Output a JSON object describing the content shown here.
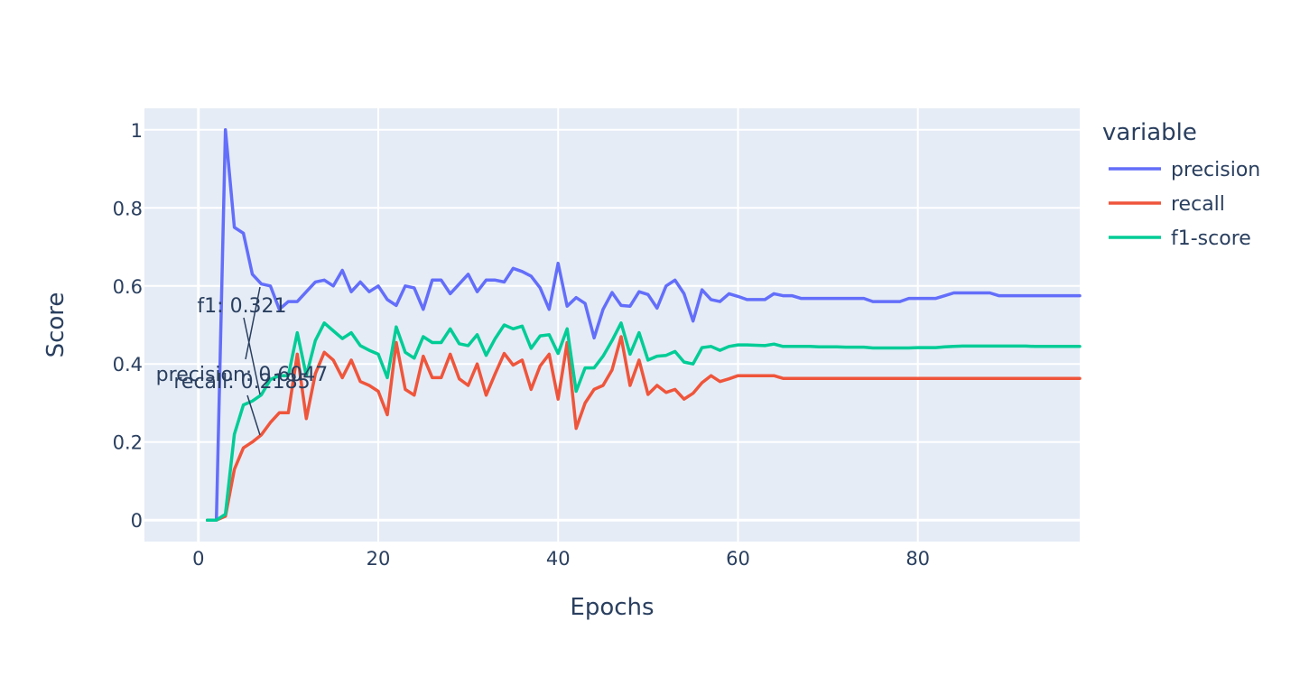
{
  "chart_data": {
    "type": "line",
    "xlabel": "Epochs",
    "ylabel": "Score",
    "xlim": [
      -6,
      98
    ],
    "ylim": [
      -0.055,
      1.055
    ],
    "xticks": [
      0,
      20,
      40,
      60,
      80
    ],
    "xtick_labels": [
      "0",
      "20",
      "40",
      "60",
      "80"
    ],
    "yticks": [
      0,
      0.2,
      0.4,
      0.6,
      0.8,
      1
    ],
    "ytick_labels": [
      "0",
      "0.2",
      "0.4",
      "0.6",
      "0.8",
      "1"
    ],
    "grid": true,
    "background": "#e5ecf6",
    "legend": {
      "title": "variable",
      "placement": "right"
    },
    "series": [
      {
        "name": "precision",
        "color": "#636efa",
        "x": [
          1,
          2,
          3,
          4,
          5,
          6,
          7,
          8,
          9,
          10,
          11,
          12,
          13,
          14,
          15,
          16,
          17,
          18,
          19,
          20,
          21,
          22,
          23,
          24,
          25,
          26,
          27,
          28,
          29,
          30,
          31,
          32,
          33,
          34,
          35,
          36,
          37,
          38,
          39,
          40,
          41,
          42,
          43,
          44,
          45,
          46,
          47,
          48,
          49,
          50,
          51,
          52,
          53,
          54,
          55,
          56,
          57,
          58,
          59,
          60,
          61,
          62,
          63,
          64,
          65,
          66,
          67,
          68,
          69,
          70,
          71,
          72,
          73,
          74,
          75,
          76,
          77,
          78,
          79,
          80,
          81,
          82,
          83,
          84,
          85,
          86,
          87,
          88,
          89,
          90,
          91,
          92,
          93,
          94,
          95,
          96,
          97,
          98
        ],
        "y": [
          0,
          0,
          1,
          0.75,
          0.735,
          0.63,
          0.605,
          0.6,
          0.54,
          0.56,
          0.56,
          0.585,
          0.61,
          0.615,
          0.6,
          0.64,
          0.585,
          0.61,
          0.585,
          0.6,
          0.565,
          0.55,
          0.6,
          0.595,
          0.54,
          0.615,
          0.615,
          0.58,
          0.605,
          0.63,
          0.585,
          0.615,
          0.615,
          0.61,
          0.645,
          0.637,
          0.625,
          0.595,
          0.54,
          0.658,
          0.548,
          0.57,
          0.555,
          0.467,
          0.54,
          0.583,
          0.55,
          0.548,
          0.585,
          0.578,
          0.543,
          0.6,
          0.615,
          0.58,
          0.51,
          0.59,
          0.565,
          0.56,
          0.58,
          0.573,
          0.565,
          0.565,
          0.565,
          0.58,
          0.575,
          0.575,
          0.568,
          0.568,
          0.568,
          0.568,
          0.568,
          0.568,
          0.568,
          0.568,
          0.56,
          0.56,
          0.56,
          0.56,
          0.568,
          0.568,
          0.568,
          0.568,
          0.575,
          0.582,
          0.582,
          0.582,
          0.582,
          0.582,
          0.575,
          0.575,
          0.575,
          0.575,
          0.575,
          0.575,
          0.575,
          0.575,
          0.575,
          0.575
        ]
      },
      {
        "name": "recall",
        "color": "#ef553b",
        "x": [
          1,
          2,
          3,
          4,
          5,
          6,
          7,
          8,
          9,
          10,
          11,
          12,
          13,
          14,
          15,
          16,
          17,
          18,
          19,
          20,
          21,
          22,
          23,
          24,
          25,
          26,
          27,
          28,
          29,
          30,
          31,
          32,
          33,
          34,
          35,
          36,
          37,
          38,
          39,
          40,
          41,
          42,
          43,
          44,
          45,
          46,
          47,
          48,
          49,
          50,
          51,
          52,
          53,
          54,
          55,
          56,
          57,
          58,
          59,
          60,
          61,
          62,
          63,
          64,
          65,
          66,
          67,
          68,
          69,
          70,
          71,
          72,
          73,
          74,
          75,
          76,
          77,
          78,
          79,
          80,
          81,
          82,
          83,
          84,
          85,
          86,
          87,
          88,
          89,
          90,
          91,
          92,
          93,
          94,
          95,
          96,
          97,
          98
        ],
        "y": [
          0,
          0,
          0.01,
          0.13,
          0.185,
          0.2,
          0.2185,
          0.25,
          0.275,
          0.275,
          0.425,
          0.26,
          0.375,
          0.43,
          0.41,
          0.365,
          0.41,
          0.355,
          0.345,
          0.33,
          0.27,
          0.455,
          0.335,
          0.32,
          0.42,
          0.365,
          0.365,
          0.425,
          0.362,
          0.345,
          0.4,
          0.32,
          0.375,
          0.427,
          0.397,
          0.41,
          0.335,
          0.395,
          0.425,
          0.31,
          0.455,
          0.235,
          0.3,
          0.335,
          0.345,
          0.385,
          0.47,
          0.345,
          0.41,
          0.322,
          0.345,
          0.327,
          0.335,
          0.31,
          0.325,
          0.352,
          0.37,
          0.355,
          0.362,
          0.37,
          0.37,
          0.37,
          0.37,
          0.37,
          0.363,
          0.363,
          0.363,
          0.363,
          0.363,
          0.363,
          0.363,
          0.363,
          0.363,
          0.363,
          0.363,
          0.363,
          0.363,
          0.363,
          0.363,
          0.363,
          0.363,
          0.363,
          0.363,
          0.363,
          0.363,
          0.363,
          0.363,
          0.363,
          0.363,
          0.363,
          0.363,
          0.363,
          0.363,
          0.363,
          0.363,
          0.363,
          0.363,
          0.363
        ]
      },
      {
        "name": "f1-score",
        "color": "#00cc96",
        "x": [
          1,
          2,
          3,
          4,
          5,
          6,
          7,
          8,
          9,
          10,
          11,
          12,
          13,
          14,
          15,
          16,
          17,
          18,
          19,
          20,
          21,
          22,
          23,
          24,
          25,
          26,
          27,
          28,
          29,
          30,
          31,
          32,
          33,
          34,
          35,
          36,
          37,
          38,
          39,
          40,
          41,
          42,
          43,
          44,
          45,
          46,
          47,
          48,
          49,
          50,
          51,
          52,
          53,
          54,
          55,
          56,
          57,
          58,
          59,
          60,
          61,
          62,
          63,
          64,
          65,
          66,
          67,
          68,
          69,
          70,
          71,
          72,
          73,
          74,
          75,
          76,
          77,
          78,
          79,
          80,
          81,
          82,
          83,
          84,
          85,
          86,
          87,
          88,
          89,
          90,
          91,
          92,
          93,
          94,
          95,
          96,
          97,
          98
        ],
        "y": [
          0,
          0,
          0.015,
          0.22,
          0.295,
          0.305,
          0.321,
          0.36,
          0.37,
          0.37,
          0.48,
          0.37,
          0.46,
          0.505,
          0.485,
          0.465,
          0.48,
          0.447,
          0.435,
          0.425,
          0.365,
          0.495,
          0.43,
          0.415,
          0.47,
          0.455,
          0.455,
          0.49,
          0.452,
          0.447,
          0.475,
          0.422,
          0.465,
          0.5,
          0.49,
          0.497,
          0.44,
          0.472,
          0.475,
          0.427,
          0.49,
          0.33,
          0.39,
          0.39,
          0.42,
          0.46,
          0.505,
          0.425,
          0.48,
          0.41,
          0.42,
          0.422,
          0.432,
          0.405,
          0.4,
          0.442,
          0.445,
          0.435,
          0.445,
          0.449,
          0.449,
          0.448,
          0.447,
          0.451,
          0.445,
          0.445,
          0.445,
          0.445,
          0.444,
          0.444,
          0.444,
          0.443,
          0.443,
          0.443,
          0.441,
          0.441,
          0.441,
          0.441,
          0.441,
          0.442,
          0.442,
          0.442,
          0.444,
          0.445,
          0.446,
          0.446,
          0.446,
          0.446,
          0.446,
          0.446,
          0.446,
          0.446,
          0.445,
          0.445,
          0.445,
          0.445,
          0.445,
          0.445
        ]
      }
    ],
    "annotations": [
      {
        "text": "f1: 0.321",
        "x": 7,
        "y": 0.321
      },
      {
        "text": "precision: 0.6047",
        "x": 7,
        "y": 0.605
      },
      {
        "text": "recall: 0.2185",
        "x": 7,
        "y": 0.2185
      }
    ]
  }
}
